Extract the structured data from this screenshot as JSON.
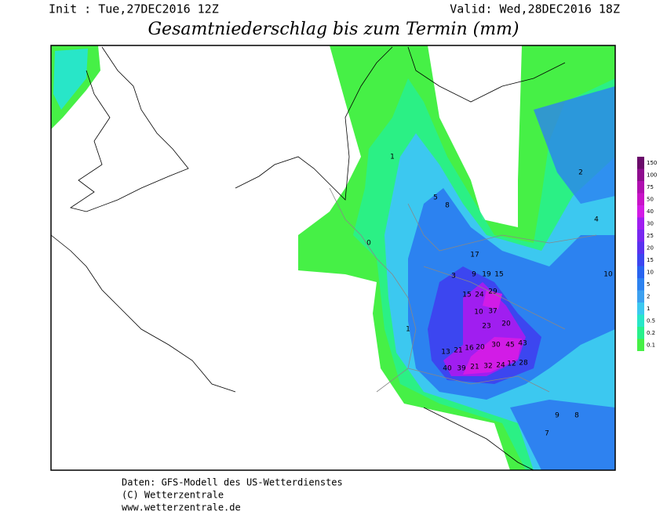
{
  "header": {
    "init": "Init : Tue,27DEC2016 12Z",
    "valid": "Valid: Wed,28DEC2016 18Z",
    "title": "Gesamtniederschlag bis zum Termin (mm)"
  },
  "legend": {
    "levels": [
      150,
      100,
      75,
      50,
      40,
      30,
      25,
      20,
      15,
      10,
      5,
      2,
      1,
      0.5,
      0.2,
      0.1
    ],
    "colors": [
      "#6a0a6a",
      "#8e0d8e",
      "#b010b0",
      "#c814c8",
      "#d21ce6",
      "#a01ef0",
      "#7828f0",
      "#5a32f0",
      "#3c46f0",
      "#2864f0",
      "#2c82f0",
      "#3ca0f0",
      "#3cc8f0",
      "#28e6c8",
      "#28f08c",
      "#46f046"
    ]
  },
  "map": {
    "labels": [
      29,
      24,
      15,
      37,
      23,
      20,
      30,
      45,
      43,
      40,
      39,
      21,
      32,
      24,
      12,
      28,
      20,
      16,
      21,
      13,
      10,
      17,
      9,
      19,
      15,
      3,
      5,
      8,
      2,
      4,
      10,
      9,
      8,
      7,
      1,
      0,
      1
    ]
  },
  "footer": {
    "lines": [
      "Daten: GFS-Modell des US-Wetterdienstes",
      "(C) Wetterzentrale",
      "www.wetterzentrale.de"
    ]
  }
}
